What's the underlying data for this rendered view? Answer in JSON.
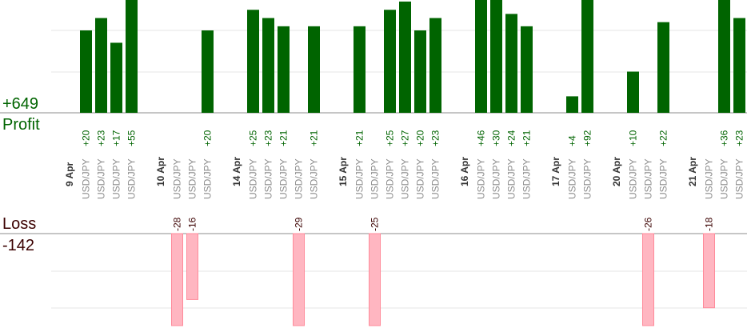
{
  "summary": {
    "profit_value": "+649",
    "profit_label": "Profit",
    "loss_label": "Loss",
    "loss_value": "-142"
  },
  "colors": {
    "profit_bar": "#006400",
    "profit_text": "#006400",
    "loss_bar": "#ffb6c1",
    "loss_bar_edge": "#ff8a9a",
    "loss_text": "#3b0000",
    "date_text": "#333333",
    "pair_text": "#8c8c8c",
    "grid": "#e4e4e4",
    "baseline": "#8c8c8c"
  },
  "chart_data": {
    "type": "bar",
    "scale_max": 20,
    "profit_total": 649,
    "loss_total": -142,
    "days": [
      {
        "date": "9 Apr",
        "trades": [
          {
            "pair": "USD/JPY",
            "value": 20
          },
          {
            "pair": "USD/JPY",
            "value": 23
          },
          {
            "pair": "USD/JPY",
            "value": 17
          },
          {
            "pair": "USD/JPY",
            "value": 55
          }
        ]
      },
      {
        "date": "10 Apr",
        "trades": [
          {
            "pair": "USD/JPY",
            "value": -28
          },
          {
            "pair": "USD/JPY",
            "value": -16
          },
          {
            "pair": "USD/JPY",
            "value": 20
          }
        ]
      },
      {
        "date": "14 Apr",
        "trades": [
          {
            "pair": "USD/JPY",
            "value": 25
          },
          {
            "pair": "USD/JPY",
            "value": 23
          },
          {
            "pair": "USD/JPY",
            "value": 21
          },
          {
            "pair": "USD/JPY",
            "value": -29
          },
          {
            "pair": "USD/JPY",
            "value": 21
          }
        ]
      },
      {
        "date": "15 Apr",
        "trades": [
          {
            "pair": "USD/JPY",
            "value": 21
          },
          {
            "pair": "USD/JPY",
            "value": -25
          },
          {
            "pair": "USD/JPY",
            "value": 25
          },
          {
            "pair": "USD/JPY",
            "value": 27
          },
          {
            "pair": "USD/JPY",
            "value": 20
          },
          {
            "pair": "USD/JPY",
            "value": 23
          }
        ]
      },
      {
        "date": "16 Apr",
        "trades": [
          {
            "pair": "USD/JPY",
            "value": 46
          },
          {
            "pair": "USD/JPY",
            "value": 30
          },
          {
            "pair": "USD/JPY",
            "value": 24
          },
          {
            "pair": "USD/JPY",
            "value": 21
          }
        ]
      },
      {
        "date": "17 Apr",
        "trades": [
          {
            "pair": "USD/JPY",
            "value": 4
          },
          {
            "pair": "USD/JPY",
            "value": 92
          }
        ]
      },
      {
        "date": "20 Apr",
        "trades": [
          {
            "pair": "USD/JPY",
            "value": 10
          },
          {
            "pair": "USD/JPY",
            "value": -26
          },
          {
            "pair": "USD/JPY",
            "value": 22
          }
        ]
      },
      {
        "date": "21 Apr",
        "trades": [
          {
            "pair": "USD/JPY",
            "value": -18
          },
          {
            "pair": "USD/JPY",
            "value": 36
          },
          {
            "pair": "USD/JPY",
            "value": 23
          }
        ]
      }
    ]
  }
}
